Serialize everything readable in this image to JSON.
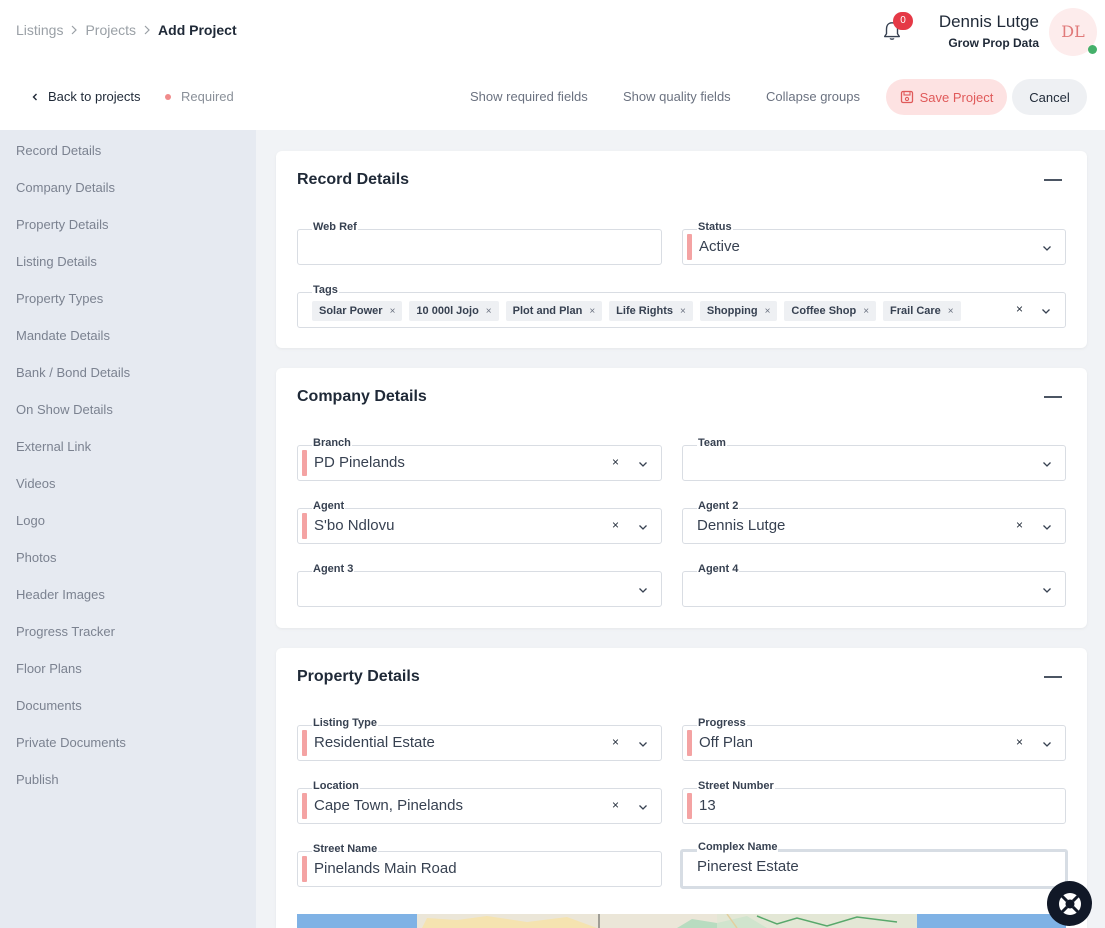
{
  "breadcrumb": {
    "items": [
      "Listings",
      "Projects"
    ],
    "current": "Add Project"
  },
  "header": {
    "notification_count": "0",
    "user_name": "Dennis Lutge",
    "user_org": "Grow Prop Data",
    "avatar_initials": "DL"
  },
  "actions": {
    "back": "Back to projects",
    "required": "Required",
    "show_required": "Show required fields",
    "show_quality": "Show quality fields",
    "collapse": "Collapse groups",
    "save": "Save Project",
    "cancel": "Cancel"
  },
  "sidebar": {
    "items": [
      "Record Details",
      "Company Details",
      "Property Details",
      "Listing Details",
      "Property Types",
      "Mandate Details",
      "Bank / Bond Details",
      "On Show Details",
      "External Link",
      "Videos",
      "Logo",
      "Photos",
      "Header Images",
      "Progress Tracker",
      "Floor Plans",
      "Documents",
      "Private Documents",
      "Publish"
    ]
  },
  "record": {
    "title": "Record Details",
    "web_ref_label": "Web Ref",
    "web_ref_value": "",
    "status_label": "Status",
    "status_value": "Active",
    "tags_label": "Tags",
    "tags": [
      "Solar Power",
      "10 000l Jojo",
      "Plot and Plan",
      "Life Rights",
      "Shopping",
      "Coffee Shop",
      "Frail Care"
    ]
  },
  "company": {
    "title": "Company Details",
    "branch_label": "Branch",
    "branch_value": "PD Pinelands",
    "team_label": "Team",
    "team_value": "",
    "agent_label": "Agent",
    "agent_value": "S'bo Ndlovu",
    "agent2_label": "Agent 2",
    "agent2_value": "Dennis Lutge",
    "agent3_label": "Agent 3",
    "agent3_value": "",
    "agent4_label": "Agent 4",
    "agent4_value": ""
  },
  "property": {
    "title": "Property Details",
    "listing_type_label": "Listing Type",
    "listing_type_value": "Residential Estate",
    "progress_label": "Progress",
    "progress_value": "Off Plan",
    "location_label": "Location",
    "location_value": "Cape Town, Pinelands",
    "street_number_label": "Street Number",
    "street_number_value": "13",
    "street_name_label": "Street Name",
    "street_name_value": "Pinelands Main Road",
    "complex_name_label": "Complex Name",
    "complex_name_value": "Pinerest Estate"
  },
  "icons": {
    "clear": "×",
    "colors": {
      "required": "#f4a3a3",
      "save_bg": "#fde2e2",
      "save_text": "#e05a5a",
      "badge": "#e53946",
      "online": "#45b06a"
    }
  }
}
